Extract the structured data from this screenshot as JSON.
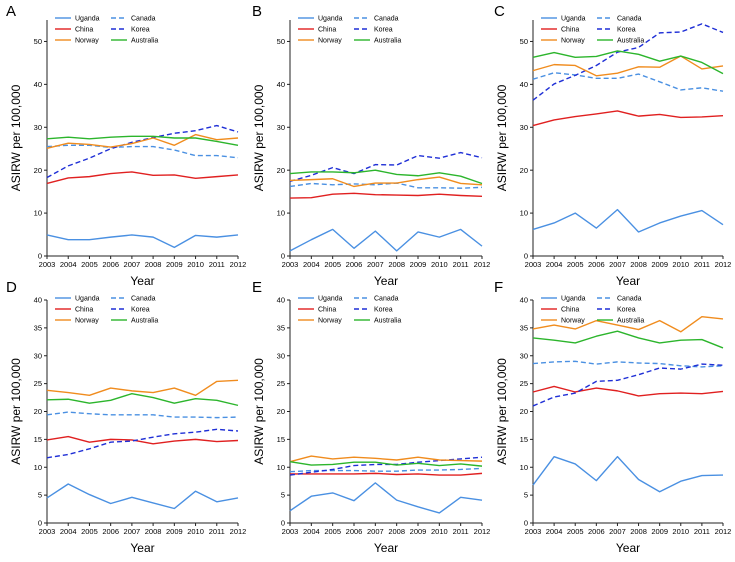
{
  "figure": {
    "ylabel": "ASIRW per 100,000",
    "xlabel": "Year",
    "legend": [
      "Uganda",
      "Canada",
      "China",
      "Korea",
      "Norway",
      "Australia"
    ]
  },
  "series_style": {
    "Uganda": {
      "color": "#4a90e2",
      "dash": "solid"
    },
    "Canada": {
      "color": "#4a90e2",
      "dash": "dashed"
    },
    "China": {
      "color": "#e02020",
      "dash": "solid"
    },
    "Korea": {
      "color": "#1f2fd6",
      "dash": "dashed"
    },
    "Norway": {
      "color": "#f08c1e",
      "dash": "solid"
    },
    "Australia": {
      "color": "#2cb52c",
      "dash": "solid"
    }
  },
  "chart_data": [
    {
      "panel": "A",
      "type": "line",
      "ylim": [
        0,
        55
      ],
      "yticks": [
        0,
        10,
        20,
        30,
        40,
        50
      ],
      "x": [
        2003,
        2004,
        2005,
        2006,
        2007,
        2008,
        2009,
        2010,
        2011,
        2012
      ],
      "xticks": [
        "2003",
        "2004",
        "2005",
        "2006",
        "2007",
        "2008",
        "2009",
        "2010",
        "2011",
        "2012"
      ],
      "ylabel": "ASIRW per 100,000",
      "xlabel": "Year",
      "series": [
        {
          "name": "Uganda",
          "values": [
            4.9,
            3.8,
            3.8,
            4.4,
            4.9,
            4.4,
            2.0,
            4.8,
            4.4,
            4.9
          ]
        },
        {
          "name": "Canada",
          "values": [
            25.5,
            25.8,
            25.8,
            25.3,
            25.5,
            25.5,
            24.7,
            23.4,
            23.4,
            22.9
          ]
        },
        {
          "name": "China",
          "values": [
            16.9,
            18.2,
            18.5,
            19.2,
            19.6,
            18.8,
            18.9,
            18.1,
            18.5,
            18.9
          ]
        },
        {
          "name": "Korea",
          "values": [
            18.3,
            21.0,
            22.8,
            25.0,
            26.5,
            27.6,
            28.6,
            29.2,
            30.4,
            28.9
          ]
        },
        {
          "name": "Norway",
          "values": [
            25.1,
            26.3,
            26.0,
            25.4,
            26.2,
            27.5,
            25.8,
            28.3,
            27.1,
            27.5
          ]
        },
        {
          "name": "Australia",
          "values": [
            27.3,
            27.7,
            27.3,
            27.7,
            27.9,
            27.9,
            27.5,
            27.5,
            26.7,
            25.8
          ]
        }
      ]
    },
    {
      "panel": "B",
      "type": "line",
      "ylim": [
        0,
        55
      ],
      "yticks": [
        0,
        10,
        20,
        30,
        40,
        50
      ],
      "x": [
        2003,
        2004,
        2005,
        2006,
        2007,
        2008,
        2009,
        2010,
        2011,
        2012
      ],
      "xticks": [
        "2003",
        "2004",
        "2005",
        "2006",
        "2007",
        "2008",
        "2009",
        "2010",
        "2011",
        "2012"
      ],
      "ylabel": "ASIRW per 100,000",
      "xlabel": "Year",
      "series": [
        {
          "name": "Uganda",
          "values": [
            1.2,
            3.8,
            6.2,
            1.8,
            5.8,
            1.2,
            5.6,
            4.4,
            6.2,
            2.3
          ]
        },
        {
          "name": "Canada",
          "values": [
            16.2,
            16.9,
            16.6,
            16.8,
            16.6,
            17.0,
            15.9,
            15.9,
            15.8,
            16.0
          ]
        },
        {
          "name": "China",
          "values": [
            13.5,
            13.6,
            14.4,
            14.6,
            14.3,
            14.2,
            14.1,
            14.4,
            14.1,
            13.9
          ]
        },
        {
          "name": "Korea",
          "values": [
            17.4,
            18.8,
            20.6,
            19.2,
            21.3,
            21.2,
            23.4,
            22.8,
            24.1,
            22.9
          ]
        },
        {
          "name": "Norway",
          "values": [
            17.6,
            17.8,
            18.0,
            16.2,
            17.0,
            17.0,
            17.8,
            18.4,
            16.9,
            16.6
          ]
        },
        {
          "name": "Australia",
          "values": [
            19.2,
            19.6,
            19.6,
            19.4,
            20.0,
            19.0,
            18.7,
            19.4,
            18.6,
            16.9
          ]
        }
      ]
    },
    {
      "panel": "C",
      "type": "line",
      "ylim": [
        0,
        55
      ],
      "yticks": [
        0,
        10,
        20,
        30,
        40,
        50
      ],
      "x": [
        2003,
        2004,
        2005,
        2006,
        2007,
        2008,
        2009,
        2010,
        2011,
        2012
      ],
      "xticks": [
        "2003",
        "2004",
        "2005",
        "2006",
        "2007",
        "2008",
        "2009",
        "2010",
        "2011",
        "2012"
      ],
      "ylabel": "ASIRW per 100,000",
      "xlabel": "Year",
      "series": [
        {
          "name": "Uganda",
          "values": [
            6.2,
            7.7,
            10.0,
            6.5,
            10.8,
            5.6,
            7.7,
            9.3,
            10.6,
            7.3
          ]
        },
        {
          "name": "Canada",
          "values": [
            41.2,
            42.7,
            42.2,
            41.4,
            41.4,
            42.4,
            40.6,
            38.7,
            39.2,
            38.4
          ]
        },
        {
          "name": "China",
          "values": [
            30.4,
            31.7,
            32.5,
            33.1,
            33.8,
            32.6,
            33.0,
            32.3,
            32.4,
            32.7
          ]
        },
        {
          "name": "Korea",
          "values": [
            36.3,
            40.1,
            42.1,
            44.4,
            47.5,
            48.6,
            52.0,
            52.2,
            54.1,
            52.1
          ]
        },
        {
          "name": "Norway",
          "values": [
            43.2,
            44.6,
            44.4,
            42.0,
            42.6,
            44.1,
            44.0,
            46.6,
            43.6,
            44.3
          ]
        },
        {
          "name": "Australia",
          "values": [
            46.3,
            47.4,
            46.3,
            46.5,
            47.8,
            47.0,
            45.4,
            46.6,
            45.1,
            42.5
          ]
        }
      ]
    },
    {
      "panel": "D",
      "type": "line",
      "ylim": [
        0,
        40
      ],
      "yticks": [
        0,
        5,
        10,
        15,
        20,
        25,
        30,
        35,
        40
      ],
      "x": [
        2003,
        2004,
        2005,
        2006,
        2007,
        2008,
        2009,
        2010,
        2011,
        2012
      ],
      "xticks": [
        "2003",
        "2004",
        "2005",
        "2006",
        "2007",
        "2008",
        "2009",
        "2010",
        "2011",
        "2012"
      ],
      "ylabel": "ASIRW per 100,000",
      "xlabel": "Year",
      "series": [
        {
          "name": "Uganda",
          "values": [
            4.5,
            7.0,
            5.1,
            3.5,
            4.6,
            3.6,
            2.6,
            5.7,
            3.8,
            4.5
          ]
        },
        {
          "name": "Canada",
          "values": [
            19.4,
            19.9,
            19.6,
            19.4,
            19.4,
            19.4,
            19.0,
            19.0,
            18.9,
            19.0
          ]
        },
        {
          "name": "China",
          "values": [
            14.9,
            15.5,
            14.5,
            15.0,
            14.9,
            14.2,
            14.7,
            15.0,
            14.6,
            14.8
          ]
        },
        {
          "name": "Korea",
          "values": [
            11.7,
            12.3,
            13.3,
            14.5,
            14.7,
            15.4,
            16.0,
            16.3,
            16.8,
            16.5
          ]
        },
        {
          "name": "Norway",
          "values": [
            23.8,
            23.4,
            22.9,
            24.2,
            23.7,
            23.4,
            24.2,
            22.9,
            25.4,
            25.6
          ]
        },
        {
          "name": "Australia",
          "values": [
            22.1,
            22.2,
            21.5,
            22.0,
            23.2,
            22.5,
            21.5,
            22.3,
            22.0,
            21.1
          ]
        }
      ]
    },
    {
      "panel": "E",
      "type": "line",
      "ylim": [
        0,
        40
      ],
      "yticks": [
        0,
        5,
        10,
        15,
        20,
        25,
        30,
        35,
        40
      ],
      "x": [
        2003,
        2004,
        2005,
        2006,
        2007,
        2008,
        2009,
        2010,
        2011,
        2012
      ],
      "xticks": [
        "2003",
        "2004",
        "2005",
        "2006",
        "2007",
        "2008",
        "2009",
        "2010",
        "2011",
        "2012"
      ],
      "ylabel": "ASIRW per 100,000",
      "xlabel": "Year",
      "series": [
        {
          "name": "Uganda",
          "values": [
            2.2,
            4.8,
            5.4,
            4.0,
            7.2,
            4.1,
            2.9,
            1.8,
            4.6,
            4.1
          ]
        },
        {
          "name": "Canada",
          "values": [
            9.2,
            9.4,
            9.4,
            9.4,
            9.3,
            9.3,
            9.5,
            9.5,
            9.6,
            9.8
          ]
        },
        {
          "name": "China",
          "values": [
            8.8,
            8.8,
            8.8,
            8.8,
            8.9,
            8.7,
            8.8,
            8.6,
            8.6,
            8.9
          ]
        },
        {
          "name": "Korea",
          "values": [
            8.6,
            9.1,
            9.6,
            10.3,
            10.5,
            10.5,
            10.9,
            11.2,
            11.5,
            11.8
          ]
        },
        {
          "name": "Norway",
          "values": [
            11.0,
            12.0,
            11.5,
            11.8,
            11.6,
            11.3,
            11.8,
            11.3,
            11.2,
            11.1
          ]
        },
        {
          "name": "Australia",
          "values": [
            11.0,
            10.4,
            10.5,
            10.9,
            10.9,
            10.4,
            10.7,
            10.3,
            10.6,
            10.2
          ]
        }
      ]
    },
    {
      "panel": "F",
      "type": "line",
      "ylim": [
        0,
        40
      ],
      "yticks": [
        0,
        5,
        10,
        15,
        20,
        25,
        30,
        35,
        40
      ],
      "x": [
        2003,
        2004,
        2005,
        2006,
        2007,
        2008,
        2009,
        2010,
        2011,
        2012
      ],
      "xticks": [
        "2003",
        "2004",
        "2005",
        "2006",
        "2007",
        "2008",
        "2009",
        "2010",
        "2011",
        "2012"
      ],
      "ylabel": "ASIRW per 100,000",
      "xlabel": "Year",
      "series": [
        {
          "name": "Uganda",
          "values": [
            6.8,
            11.9,
            10.6,
            7.6,
            11.9,
            7.8,
            5.6,
            7.5,
            8.5,
            8.6
          ]
        },
        {
          "name": "Canada",
          "values": [
            28.6,
            28.9,
            29.0,
            28.5,
            28.9,
            28.7,
            28.6,
            28.2,
            28.0,
            28.2
          ]
        },
        {
          "name": "China",
          "values": [
            23.5,
            24.5,
            23.5,
            24.2,
            23.7,
            22.8,
            23.2,
            23.3,
            23.2,
            23.6
          ]
        },
        {
          "name": "Korea",
          "values": [
            21.0,
            22.6,
            23.3,
            25.4,
            25.6,
            26.6,
            27.8,
            27.6,
            28.5,
            28.3
          ]
        },
        {
          "name": "Norway",
          "values": [
            34.8,
            35.5,
            34.8,
            36.3,
            35.5,
            34.7,
            36.3,
            34.3,
            37.0,
            36.6
          ]
        },
        {
          "name": "Australia",
          "values": [
            33.2,
            32.8,
            32.3,
            33.5,
            34.4,
            33.2,
            32.3,
            32.8,
            32.9,
            31.4
          ]
        }
      ]
    }
  ]
}
